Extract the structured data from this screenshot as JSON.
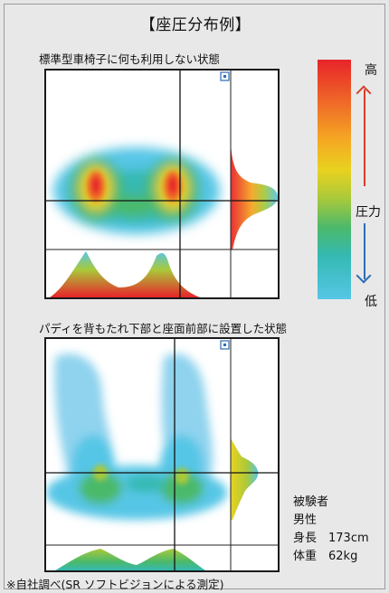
{
  "title": "【座圧分布例】",
  "panels": [
    {
      "caption": "標準型車椅子に何も利用しない状態"
    },
    {
      "caption": "パディを背もたれ下部と座面前部に設置した状態"
    }
  ],
  "color_scale": {
    "high_label": "高",
    "mid_label": "圧力",
    "low_label": "低",
    "colors": [
      "#e8242a",
      "#f5a623",
      "#e9d21f",
      "#4cb96a",
      "#56c6e6"
    ]
  },
  "subject": {
    "heading": "被験者",
    "sex": "男性",
    "height": "身長　173cm",
    "weight": "体重　62kg"
  },
  "footnote": "※自社調べ(SR ソフトビジョンによる測定)"
}
